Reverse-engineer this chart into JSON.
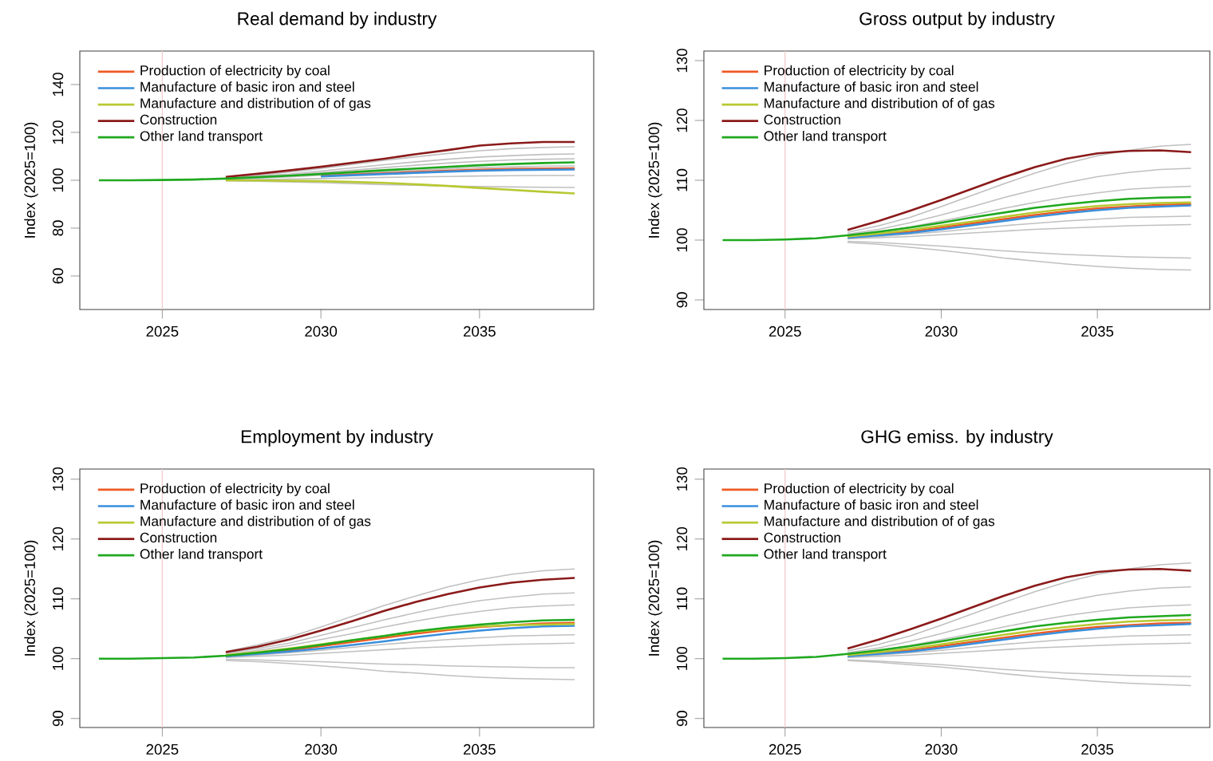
{
  "chart_data": [
    {
      "type": "line",
      "title": "Real demand by industry",
      "ylabel": "Index (2025=100)",
      "legend": "top left",
      "x": [
        2023,
        2024,
        2025,
        2026,
        2027,
        2028,
        2029,
        2030,
        2031,
        2032,
        2033,
        2034,
        2035,
        2036,
        2037,
        2038
      ],
      "xlim": [
        2022.4,
        2038.6
      ],
      "ylim": [
        46,
        154
      ],
      "xticks": [
        2025,
        2030,
        2035
      ],
      "yticks": [
        60,
        80,
        100,
        120,
        140
      ],
      "ref_lines": [
        {
          "axis": "x",
          "value": 2025,
          "color": "#f4cccc"
        }
      ],
      "series": [
        {
          "color": "#c0c0c0",
          "values": [
            null,
            null,
            null,
            null,
            101.1,
            102.1,
            103.4,
            104.9,
            106.6,
            108.3,
            109.8,
            111.2,
            112.3,
            113.2,
            113.7,
            114
          ]
        },
        {
          "color": "#c0c0c0",
          "values": [
            null,
            null,
            null,
            null,
            100.9,
            101.7,
            102.6,
            103.9,
            105.2,
            106.5,
            107.7,
            108.8,
            109.7,
            110.3,
            110.8,
            111
          ]
        },
        {
          "color": "#c0c0c0",
          "values": [
            null,
            null,
            null,
            null,
            100.7,
            101.4,
            102.2,
            103.2,
            104.2,
            105.3,
            106.3,
            107.2,
            107.9,
            108.5,
            108.8,
            109
          ]
        },
        {
          "color": "#c0c0c0",
          "values": [
            null,
            null,
            null,
            null,
            100.5,
            100.9,
            101.4,
            102.1,
            102.8,
            103.5,
            104.2,
            104.8,
            105.3,
            105.6,
            105.9,
            106
          ]
        },
        {
          "color": "#c0c0c0",
          "values": [
            null,
            null,
            null,
            null,
            100.2,
            100.3,
            100.5,
            100.7,
            100.9,
            101.2,
            101.4,
            101.6,
            101.8,
            101.9,
            102,
            102
          ]
        },
        {
          "color": "#c0c0c0",
          "values": [
            null,
            null,
            null,
            null,
            99.8,
            99.6,
            99.3,
            99,
            98.6,
            98.2,
            97.9,
            97.6,
            97.4,
            97.2,
            97.1,
            97
          ]
        },
        {
          "name": "Production of electricity by coal",
          "color": "#ee5a24",
          "values": [
            null,
            null,
            null,
            null,
            null,
            null,
            null,
            101.8,
            102.4,
            102.9,
            103.5,
            104,
            104.4,
            104.7,
            104.9,
            105
          ]
        },
        {
          "name": "Manufacture of basic iron and steel",
          "color": "#3a8fdc",
          "values": [
            null,
            null,
            null,
            null,
            null,
            null,
            null,
            101.6,
            102.1,
            102.6,
            103.1,
            103.6,
            104,
            104.3,
            104.4,
            104.5
          ]
        },
        {
          "name": "Manufacture and distribution of of gas",
          "color": "#b8c832",
          "values": [
            null,
            null,
            null,
            null,
            100,
            99.9,
            99.8,
            99.6,
            99.3,
            98.9,
            98.3,
            97.6,
            96.8,
            96,
            95.2,
            94.5
          ]
        },
        {
          "name": "Construction",
          "color": "#8b1a1a",
          "values": [
            null,
            null,
            null,
            null,
            101.4,
            102.7,
            104.1,
            105.6,
            107.3,
            109,
            110.9,
            112.6,
            114.5,
            115.4,
            116,
            116
          ]
        },
        {
          "name": "Other land transport",
          "color": "#1fa81f",
          "values": [
            100,
            100,
            100.1,
            100.3,
            100.7,
            101.3,
            101.9,
            102.6,
            103.4,
            104.2,
            104.9,
            105.6,
            106.3,
            106.8,
            107.2,
            107.5
          ]
        }
      ]
    },
    {
      "type": "line",
      "title": "Gross output by industry",
      "ylabel": "Index (2025=100)",
      "legend": "top left",
      "x": [
        2023,
        2024,
        2025,
        2026,
        2027,
        2028,
        2029,
        2030,
        2031,
        2032,
        2033,
        2034,
        2035,
        2036,
        2037,
        2038
      ],
      "xlim": [
        2022.4,
        2038.6
      ],
      "ylim": [
        88.4,
        131.6
      ],
      "xticks": [
        2025,
        2030,
        2035
      ],
      "yticks": [
        90,
        100,
        110,
        120,
        130
      ],
      "ref_lines": [
        {
          "axis": "x",
          "value": 2025,
          "color": "#f4cccc"
        }
      ],
      "series": [
        {
          "color": "#c0c0c0",
          "values": [
            null,
            null,
            null,
            null,
            101.3,
            102.4,
            103.8,
            105.6,
            107.5,
            109.4,
            111.2,
            112.8,
            114.1,
            115,
            115.7,
            116
          ]
        },
        {
          "color": "#c0c0c0",
          "values": [
            null,
            null,
            null,
            null,
            101,
            101.8,
            102.9,
            104.2,
            105.6,
            107.1,
            108.4,
            109.6,
            110.6,
            111.3,
            111.8,
            112
          ]
        },
        {
          "color": "#c0c0c0",
          "values": [
            null,
            null,
            null,
            null,
            100.7,
            101.4,
            102.2,
            103.2,
            104.2,
            105.3,
            106.3,
            107.2,
            107.9,
            108.5,
            108.8,
            109
          ]
        },
        {
          "color": "#c0c0c0",
          "values": [
            null,
            null,
            null,
            null,
            100.3,
            100.6,
            101,
            101.4,
            101.9,
            102.4,
            102.8,
            103.2,
            103.5,
            103.8,
            103.9,
            104
          ]
        },
        {
          "color": "#c0c0c0",
          "values": [
            null,
            null,
            null,
            null,
            100.2,
            100.4,
            100.6,
            100.9,
            101.2,
            101.5,
            101.8,
            102,
            102.2,
            102.4,
            102.5,
            102.6
          ]
        },
        {
          "color": "#c0c0c0",
          "values": [
            null,
            null,
            null,
            null,
            99.8,
            99.6,
            99.3,
            99,
            98.6,
            98.2,
            97.9,
            97.6,
            97.4,
            97.2,
            97.1,
            97
          ]
        },
        {
          "color": "#c0c0c0",
          "values": [
            null,
            null,
            null,
            null,
            99.6,
            99.3,
            98.8,
            98.3,
            97.7,
            97,
            96.5,
            96,
            95.6,
            95.3,
            95.1,
            95
          ]
        },
        {
          "name": "Production of electricity by coal",
          "color": "#ee5a24",
          "values": [
            null,
            null,
            null,
            null,
            100.5,
            100.9,
            101.4,
            102.1,
            102.8,
            103.5,
            104.2,
            104.8,
            105.3,
            105.6,
            105.9,
            106
          ]
        },
        {
          "name": "Manufacture of basic iron and steel",
          "color": "#3a8fdc",
          "values": [
            null,
            null,
            null,
            null,
            100.4,
            100.8,
            101.2,
            101.8,
            102.5,
            103.2,
            103.9,
            104.5,
            105,
            105.4,
            105.6,
            105.8
          ]
        },
        {
          "name": "Manufacture and distribution of of gas",
          "color": "#b8c832",
          "values": [
            null,
            null,
            null,
            null,
            100.6,
            101.1,
            101.7,
            102.4,
            103.1,
            103.9,
            104.6,
            105.2,
            105.7,
            106,
            106.2,
            106.3
          ]
        },
        {
          "name": "Construction",
          "color": "#8b1a1a",
          "values": [
            null,
            null,
            null,
            null,
            101.7,
            103.2,
            104.9,
            106.7,
            108.6,
            110.5,
            112.2,
            113.6,
            114.5,
            114.9,
            115,
            114.7
          ]
        },
        {
          "name": "Other land transport",
          "color": "#1fa81f",
          "values": [
            100,
            100,
            100.1,
            100.3,
            100.8,
            101.4,
            102.1,
            102.9,
            103.8,
            104.6,
            105.4,
            106,
            106.5,
            106.9,
            107.1,
            107.2
          ]
        }
      ]
    },
    {
      "type": "line",
      "title": "Employment by industry",
      "ylabel": "Index (2025=100)",
      "legend": "top left",
      "x": [
        2023,
        2024,
        2025,
        2026,
        2027,
        2028,
        2029,
        2030,
        2031,
        2032,
        2033,
        2034,
        2035,
        2036,
        2037,
        2038
      ],
      "xlim": [
        2022.4,
        2038.6
      ],
      "ylim": [
        88.5,
        131.7
      ],
      "xticks": [
        2025,
        2030,
        2035
      ],
      "yticks": [
        90,
        100,
        110,
        120,
        130
      ],
      "ref_lines": [
        {
          "axis": "x",
          "value": 2025,
          "color": "#f4cccc"
        }
      ],
      "series": [
        {
          "color": "#c0c0c0",
          "values": [
            null,
            null,
            null,
            null,
            101.2,
            102.3,
            103.6,
            105.3,
            107.1,
            108.9,
            110.5,
            112,
            113.2,
            114.1,
            114.7,
            115
          ]
        },
        {
          "color": "#c0c0c0",
          "values": [
            null,
            null,
            null,
            null,
            100.9,
            101.7,
            102.6,
            103.9,
            105.2,
            106.5,
            107.7,
            108.8,
            109.7,
            110.3,
            110.8,
            111
          ]
        },
        {
          "color": "#c0c0c0",
          "values": [
            null,
            null,
            null,
            null,
            100.7,
            101.4,
            102.2,
            103.2,
            104.2,
            105.3,
            106.3,
            107.2,
            107.9,
            108.5,
            108.8,
            109
          ]
        },
        {
          "color": "#c0c0c0",
          "values": [
            null,
            null,
            null,
            null,
            100.3,
            100.6,
            101,
            101.4,
            101.9,
            102.4,
            102.8,
            103.2,
            103.5,
            103.8,
            103.9,
            104
          ]
        },
        {
          "color": "#c0c0c0",
          "values": [
            null,
            null,
            null,
            null,
            100.2,
            100.4,
            100.6,
            100.9,
            101.2,
            101.5,
            101.8,
            102,
            102.2,
            102.4,
            102.5,
            102.6
          ]
        },
        {
          "color": "#c0c0c0",
          "values": [
            null,
            null,
            null,
            null,
            99.9,
            99.8,
            99.6,
            99.5,
            99.3,
            99.1,
            99,
            98.8,
            98.7,
            98.6,
            98.5,
            98.5
          ]
        },
        {
          "color": "#c0c0c0",
          "values": [
            null,
            null,
            null,
            null,
            99.7,
            99.5,
            99.2,
            98.8,
            98.4,
            97.9,
            97.6,
            97.2,
            96.9,
            96.7,
            96.6,
            96.5
          ]
        },
        {
          "name": "Production of electricity by coal",
          "color": "#ee5a24",
          "values": [
            null,
            null,
            null,
            null,
            100.5,
            100.9,
            101.4,
            102.1,
            102.8,
            103.5,
            104.2,
            104.8,
            105.3,
            105.6,
            105.9,
            106
          ]
        },
        {
          "name": "Manufacture of basic iron and steel",
          "color": "#3a8fdc",
          "values": [
            null,
            null,
            null,
            null,
            100.4,
            100.8,
            101.2,
            101.7,
            102.3,
            102.9,
            103.6,
            104.2,
            104.7,
            105.1,
            105.4,
            105.5
          ]
        },
        {
          "name": "Manufacture and distribution of of gas",
          "color": "#b8c832",
          "values": [
            null,
            null,
            null,
            null,
            100.6,
            101.1,
            101.7,
            102.4,
            103.1,
            103.8,
            104.5,
            105,
            105.4,
            105.6,
            105.7,
            105.8
          ]
        },
        {
          "name": "Construction",
          "color": "#8b1a1a",
          "values": [
            null,
            null,
            null,
            null,
            101.1,
            102,
            103.2,
            104.7,
            106.3,
            108,
            109.5,
            110.8,
            111.9,
            112.7,
            113.2,
            113.5
          ]
        },
        {
          "name": "Other land transport",
          "color": "#1fa81f",
          "values": [
            100,
            100,
            100.1,
            100.2,
            100.5,
            101,
            101.6,
            102.3,
            103.1,
            103.8,
            104.6,
            105.2,
            105.7,
            106.1,
            106.4,
            106.5
          ]
        }
      ]
    },
    {
      "type": "line",
      "title": "GHG emiss. by industry",
      "ylabel": "Index (2025=100)",
      "legend": "top left",
      "x": [
        2023,
        2024,
        2025,
        2026,
        2027,
        2028,
        2029,
        2030,
        2031,
        2032,
        2033,
        2034,
        2035,
        2036,
        2037,
        2038
      ],
      "xlim": [
        2022.4,
        2038.6
      ],
      "ylim": [
        88.5,
        131.7
      ],
      "xticks": [
        2025,
        2030,
        2035
      ],
      "yticks": [
        90,
        100,
        110,
        120,
        130
      ],
      "ref_lines": [
        {
          "axis": "x",
          "value": 2025,
          "color": "#f4cccc"
        }
      ],
      "series": [
        {
          "color": "#c0c0c0",
          "values": [
            null,
            null,
            null,
            null,
            101.3,
            102.4,
            103.8,
            105.6,
            107.5,
            109.4,
            111.2,
            112.8,
            114.1,
            115,
            115.7,
            116
          ]
        },
        {
          "color": "#c0c0c0",
          "values": [
            null,
            null,
            null,
            null,
            101,
            101.8,
            102.9,
            104.2,
            105.6,
            107.1,
            108.4,
            109.6,
            110.6,
            111.3,
            111.8,
            112
          ]
        },
        {
          "color": "#c0c0c0",
          "values": [
            null,
            null,
            null,
            null,
            100.7,
            101.4,
            102.2,
            103.2,
            104.2,
            105.3,
            106.3,
            107.2,
            107.9,
            108.5,
            108.8,
            109
          ]
        },
        {
          "color": "#c0c0c0",
          "values": [
            null,
            null,
            null,
            null,
            100.3,
            100.6,
            101,
            101.4,
            101.9,
            102.4,
            102.8,
            103.2,
            103.5,
            103.8,
            103.9,
            104
          ]
        },
        {
          "color": "#c0c0c0",
          "values": [
            null,
            null,
            null,
            null,
            100.2,
            100.4,
            100.6,
            100.9,
            101.2,
            101.5,
            101.8,
            102,
            102.2,
            102.4,
            102.5,
            102.6
          ]
        },
        {
          "color": "#c0c0c0",
          "values": [
            null,
            null,
            null,
            null,
            99.8,
            99.6,
            99.3,
            99,
            98.6,
            98.2,
            97.9,
            97.6,
            97.4,
            97.2,
            97.1,
            97
          ]
        },
        {
          "color": "#c0c0c0",
          "values": [
            null,
            null,
            null,
            null,
            99.7,
            99.4,
            99,
            98.6,
            98.1,
            97.5,
            97,
            96.6,
            96.2,
            95.9,
            95.7,
            95.5
          ]
        },
        {
          "name": "Production of electricity by coal",
          "color": "#ee5a24",
          "values": [
            null,
            null,
            null,
            null,
            100.5,
            100.9,
            101.4,
            102.1,
            102.8,
            103.5,
            104.2,
            104.8,
            105.3,
            105.6,
            105.9,
            106
          ]
        },
        {
          "name": "Manufacture of basic iron and steel",
          "color": "#3a8fdc",
          "values": [
            null,
            null,
            null,
            null,
            100.4,
            100.8,
            101.2,
            101.8,
            102.5,
            103.2,
            103.9,
            104.5,
            105,
            105.4,
            105.6,
            105.8
          ]
        },
        {
          "name": "Manufacture and distribution of of gas",
          "color": "#b8c832",
          "values": [
            null,
            null,
            null,
            null,
            100.6,
            101.1,
            101.7,
            102.4,
            103.2,
            104,
            104.7,
            105.3,
            105.8,
            106.2,
            106.4,
            106.5
          ]
        },
        {
          "name": "Construction",
          "color": "#8b1a1a",
          "values": [
            null,
            null,
            null,
            null,
            101.7,
            103.2,
            104.9,
            106.7,
            108.6,
            110.5,
            112.2,
            113.6,
            114.5,
            114.9,
            115,
            114.7
          ]
        },
        {
          "name": "Other land transport",
          "color": "#1fa81f",
          "values": [
            100,
            100,
            100.1,
            100.3,
            100.8,
            101.4,
            102.1,
            102.9,
            103.8,
            104.6,
            105.4,
            106,
            106.5,
            106.9,
            107.1,
            107.3
          ]
        }
      ]
    }
  ]
}
